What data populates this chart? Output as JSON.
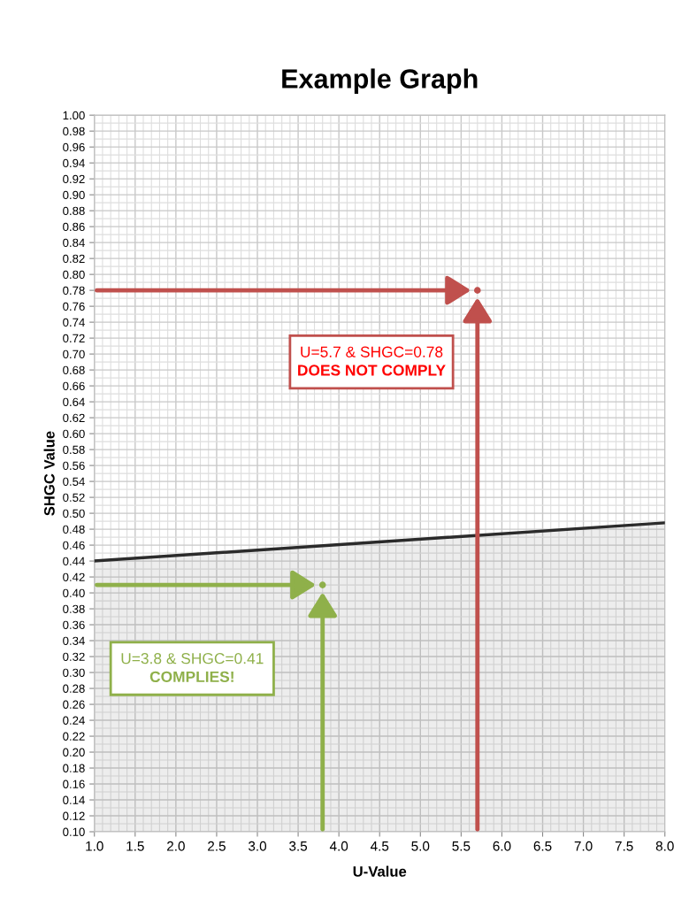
{
  "chart_data": {
    "type": "line",
    "title": "Example Graph",
    "xlabel": "U-Value",
    "ylabel": "SHGC Value",
    "xlim": [
      1.0,
      8.0
    ],
    "ylim": [
      0.1,
      1.0
    ],
    "xticks": [
      {
        "value": 1.0,
        "label": "1.0"
      },
      {
        "value": 1.5,
        "label": "1.5"
      },
      {
        "value": 2.0,
        "label": "2.0"
      },
      {
        "value": 2.5,
        "label": "2.5"
      },
      {
        "value": 3.0,
        "label": "3.0"
      },
      {
        "value": 3.5,
        "label": "3.5"
      },
      {
        "value": 4.0,
        "label": "4.0"
      },
      {
        "value": 4.5,
        "label": "4.5"
      },
      {
        "value": 5.0,
        "label": "5.0"
      },
      {
        "value": 5.5,
        "label": "5.5"
      },
      {
        "value": 6.0,
        "label": "6.0"
      },
      {
        "value": 6.5,
        "label": "6.5"
      },
      {
        "value": 7.0,
        "label": "7.0"
      },
      {
        "value": 7.5,
        "label": "7.5"
      },
      {
        "value": 8.0,
        "label": "8.0"
      }
    ],
    "yticks": [
      {
        "value": 0.1,
        "label": "0.10"
      },
      {
        "value": 0.12,
        "label": "0.12"
      },
      {
        "value": 0.14,
        "label": "0.14"
      },
      {
        "value": 0.16,
        "label": "0.16"
      },
      {
        "value": 0.18,
        "label": "0.18"
      },
      {
        "value": 0.2,
        "label": "0.20"
      },
      {
        "value": 0.22,
        "label": "0.22"
      },
      {
        "value": 0.24,
        "label": "0.24"
      },
      {
        "value": 0.26,
        "label": "0.26"
      },
      {
        "value": 0.28,
        "label": "0.28"
      },
      {
        "value": 0.3,
        "label": "0.30"
      },
      {
        "value": 0.32,
        "label": "0.32"
      },
      {
        "value": 0.34,
        "label": "0.34"
      },
      {
        "value": 0.36,
        "label": "0.36"
      },
      {
        "value": 0.38,
        "label": "0.38"
      },
      {
        "value": 0.4,
        "label": "0.40"
      },
      {
        "value": 0.42,
        "label": "0.42"
      },
      {
        "value": 0.44,
        "label": "0.44"
      },
      {
        "value": 0.46,
        "label": "0.46"
      },
      {
        "value": 0.48,
        "label": "0.48"
      },
      {
        "value": 0.5,
        "label": "0.50"
      },
      {
        "value": 0.52,
        "label": "0.52"
      },
      {
        "value": 0.54,
        "label": "0.54"
      },
      {
        "value": 0.56,
        "label": "0.56"
      },
      {
        "value": 0.58,
        "label": "0.58"
      },
      {
        "value": 0.6,
        "label": "0.60"
      },
      {
        "value": 0.62,
        "label": "0.62"
      },
      {
        "value": 0.64,
        "label": "0.64"
      },
      {
        "value": 0.66,
        "label": "0.66"
      },
      {
        "value": 0.68,
        "label": "0.68"
      },
      {
        "value": 0.7,
        "label": "0.70"
      },
      {
        "value": 0.72,
        "label": "0.72"
      },
      {
        "value": 0.74,
        "label": "0.74"
      },
      {
        "value": 0.76,
        "label": "0.76"
      },
      {
        "value": 0.78,
        "label": "0.78"
      },
      {
        "value": 0.8,
        "label": "0.80"
      },
      {
        "value": 0.82,
        "label": "0.82"
      },
      {
        "value": 0.84,
        "label": "0.84"
      },
      {
        "value": 0.86,
        "label": "0.86"
      },
      {
        "value": 0.88,
        "label": "0.88"
      },
      {
        "value": 0.9,
        "label": "0.90"
      },
      {
        "value": 0.92,
        "label": "0.92"
      },
      {
        "value": 0.94,
        "label": "0.94"
      },
      {
        "value": 0.96,
        "label": "0.96"
      },
      {
        "value": 0.98,
        "label": "0.98"
      },
      {
        "value": 1.0,
        "label": "1.00"
      }
    ],
    "grid": true,
    "series": [
      {
        "type": "area",
        "color": "#2b2b2b",
        "x": [
          1.0,
          8.0
        ],
        "values": [
          0.44,
          0.488
        ]
      },
      {
        "type": "scatter",
        "color": "#c0504d",
        "x": [
          5.7
        ],
        "values": [
          0.78
        ]
      },
      {
        "type": "scatter",
        "color": "#8fb04a",
        "x": [
          3.8
        ],
        "values": [
          0.41
        ]
      }
    ],
    "annotations": [
      "U=5.7 & SHGC=0.78",
      "DOES NOT COMPLY",
      "U=3.8 & SHGC=0.41",
      "COMPLIES!"
    ]
  }
}
